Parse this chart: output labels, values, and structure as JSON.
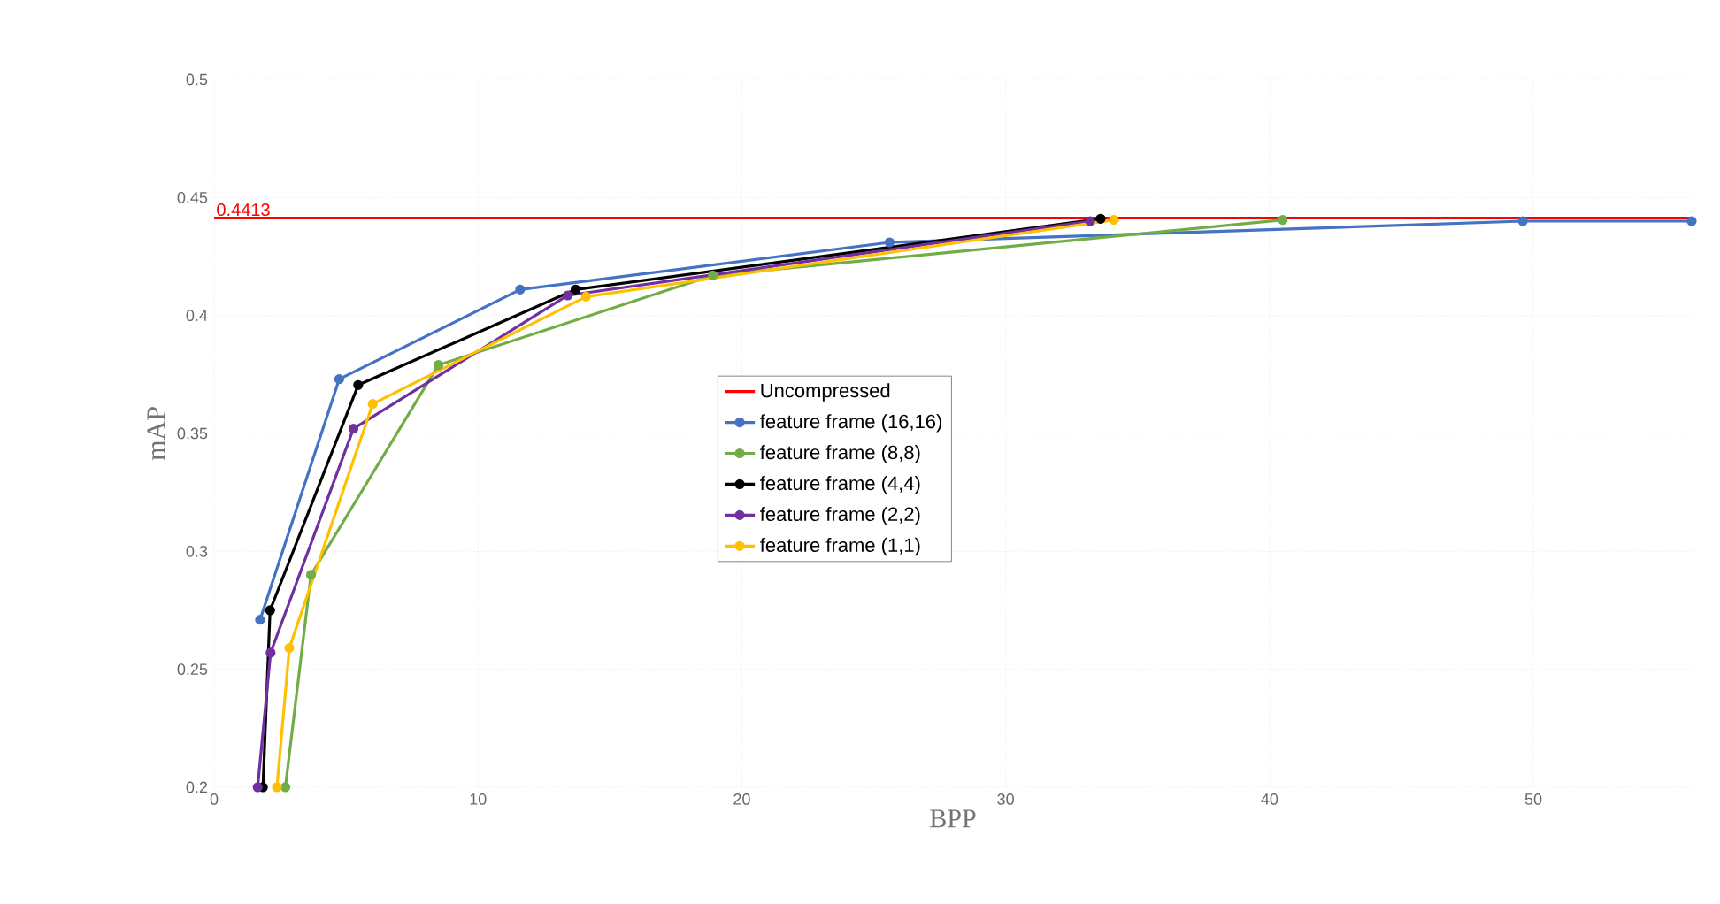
{
  "chart_data": {
    "type": "line",
    "xlabel": "BPP",
    "ylabel": "mAP",
    "xlim": [
      0,
      56
    ],
    "ylim": [
      0.2,
      0.5
    ],
    "xticks": [
      0,
      10,
      20,
      30,
      40,
      50
    ],
    "yticks": [
      0.2,
      0.25,
      0.3,
      0.35,
      0.4,
      0.45,
      0.5
    ],
    "grid": true,
    "legend": "center",
    "marker": "circle",
    "annotations": [
      {
        "text": "0.4413",
        "x": 0,
        "y": 0.4413
      }
    ],
    "series": [
      {
        "name": "Uncompressed",
        "color": "#ff0000",
        "x": [
          0,
          56
        ],
        "values": [
          0.4413,
          0.4413
        ],
        "marker": "none"
      },
      {
        "name": "feature frame (16,16)",
        "color": "#4472c4",
        "x": [
          1.74,
          4.74,
          11.6,
          25.6,
          49.6,
          56
        ],
        "values": [
          0.271,
          0.373,
          0.411,
          0.431,
          0.44,
          0.44
        ]
      },
      {
        "name": "feature frame (8,8)",
        "color": "#70ad47",
        "x": [
          2.7,
          3.67,
          8.5,
          18.9,
          40.5
        ],
        "values": [
          0.2,
          0.29,
          0.379,
          0.417,
          0.4405
        ]
      },
      {
        "name": "feature frame (4,4)",
        "color": "#000000",
        "x": [
          1.85,
          2.12,
          5.46,
          13.7,
          33.6
        ],
        "values": [
          0.2,
          0.275,
          0.3705,
          0.411,
          0.441
        ]
      },
      {
        "name": "feature frame (2,2)",
        "color": "#7030a0",
        "x": [
          1.65,
          2.14,
          5.28,
          13.4,
          33.2
        ],
        "values": [
          0.2,
          0.257,
          0.352,
          0.4085,
          0.44
        ]
      },
      {
        "name": "feature frame (1,1)",
        "color": "#ffc000",
        "x": [
          2.38,
          2.85,
          6.01,
          14.1,
          34.1
        ],
        "values": [
          0.2,
          0.259,
          0.3625,
          0.408,
          0.4405
        ]
      }
    ]
  }
}
